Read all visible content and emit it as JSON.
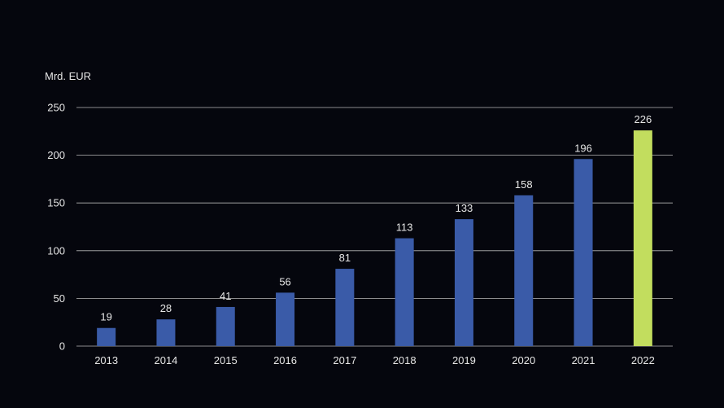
{
  "chart_data": {
    "type": "bar",
    "ylabel": "Mrd. EUR",
    "categories": [
      "2013",
      "2014",
      "2015",
      "2016",
      "2017",
      "2018",
      "2019",
      "2020",
      "2021",
      "2022"
    ],
    "values": [
      19,
      28,
      41,
      56,
      81,
      113,
      133,
      158,
      196,
      226
    ],
    "data_labels": [
      "19",
      "28",
      "41",
      "56",
      "81",
      "113",
      "133",
      "158",
      "196",
      "226"
    ],
    "ylim": [
      0,
      250
    ],
    "yticks": [
      0,
      50,
      100,
      150,
      200,
      250
    ],
    "ytick_labels": [
      "0",
      "50",
      "100",
      "150",
      "200",
      "250"
    ],
    "grid": true,
    "legend": "none",
    "colors": {
      "background": "#05060d",
      "bar": "#3a5ba8",
      "highlight_bar": "#c2dd5e",
      "highlight_category": "2022",
      "text": "#e6e6e6",
      "grid": "#b9b9b9"
    }
  }
}
